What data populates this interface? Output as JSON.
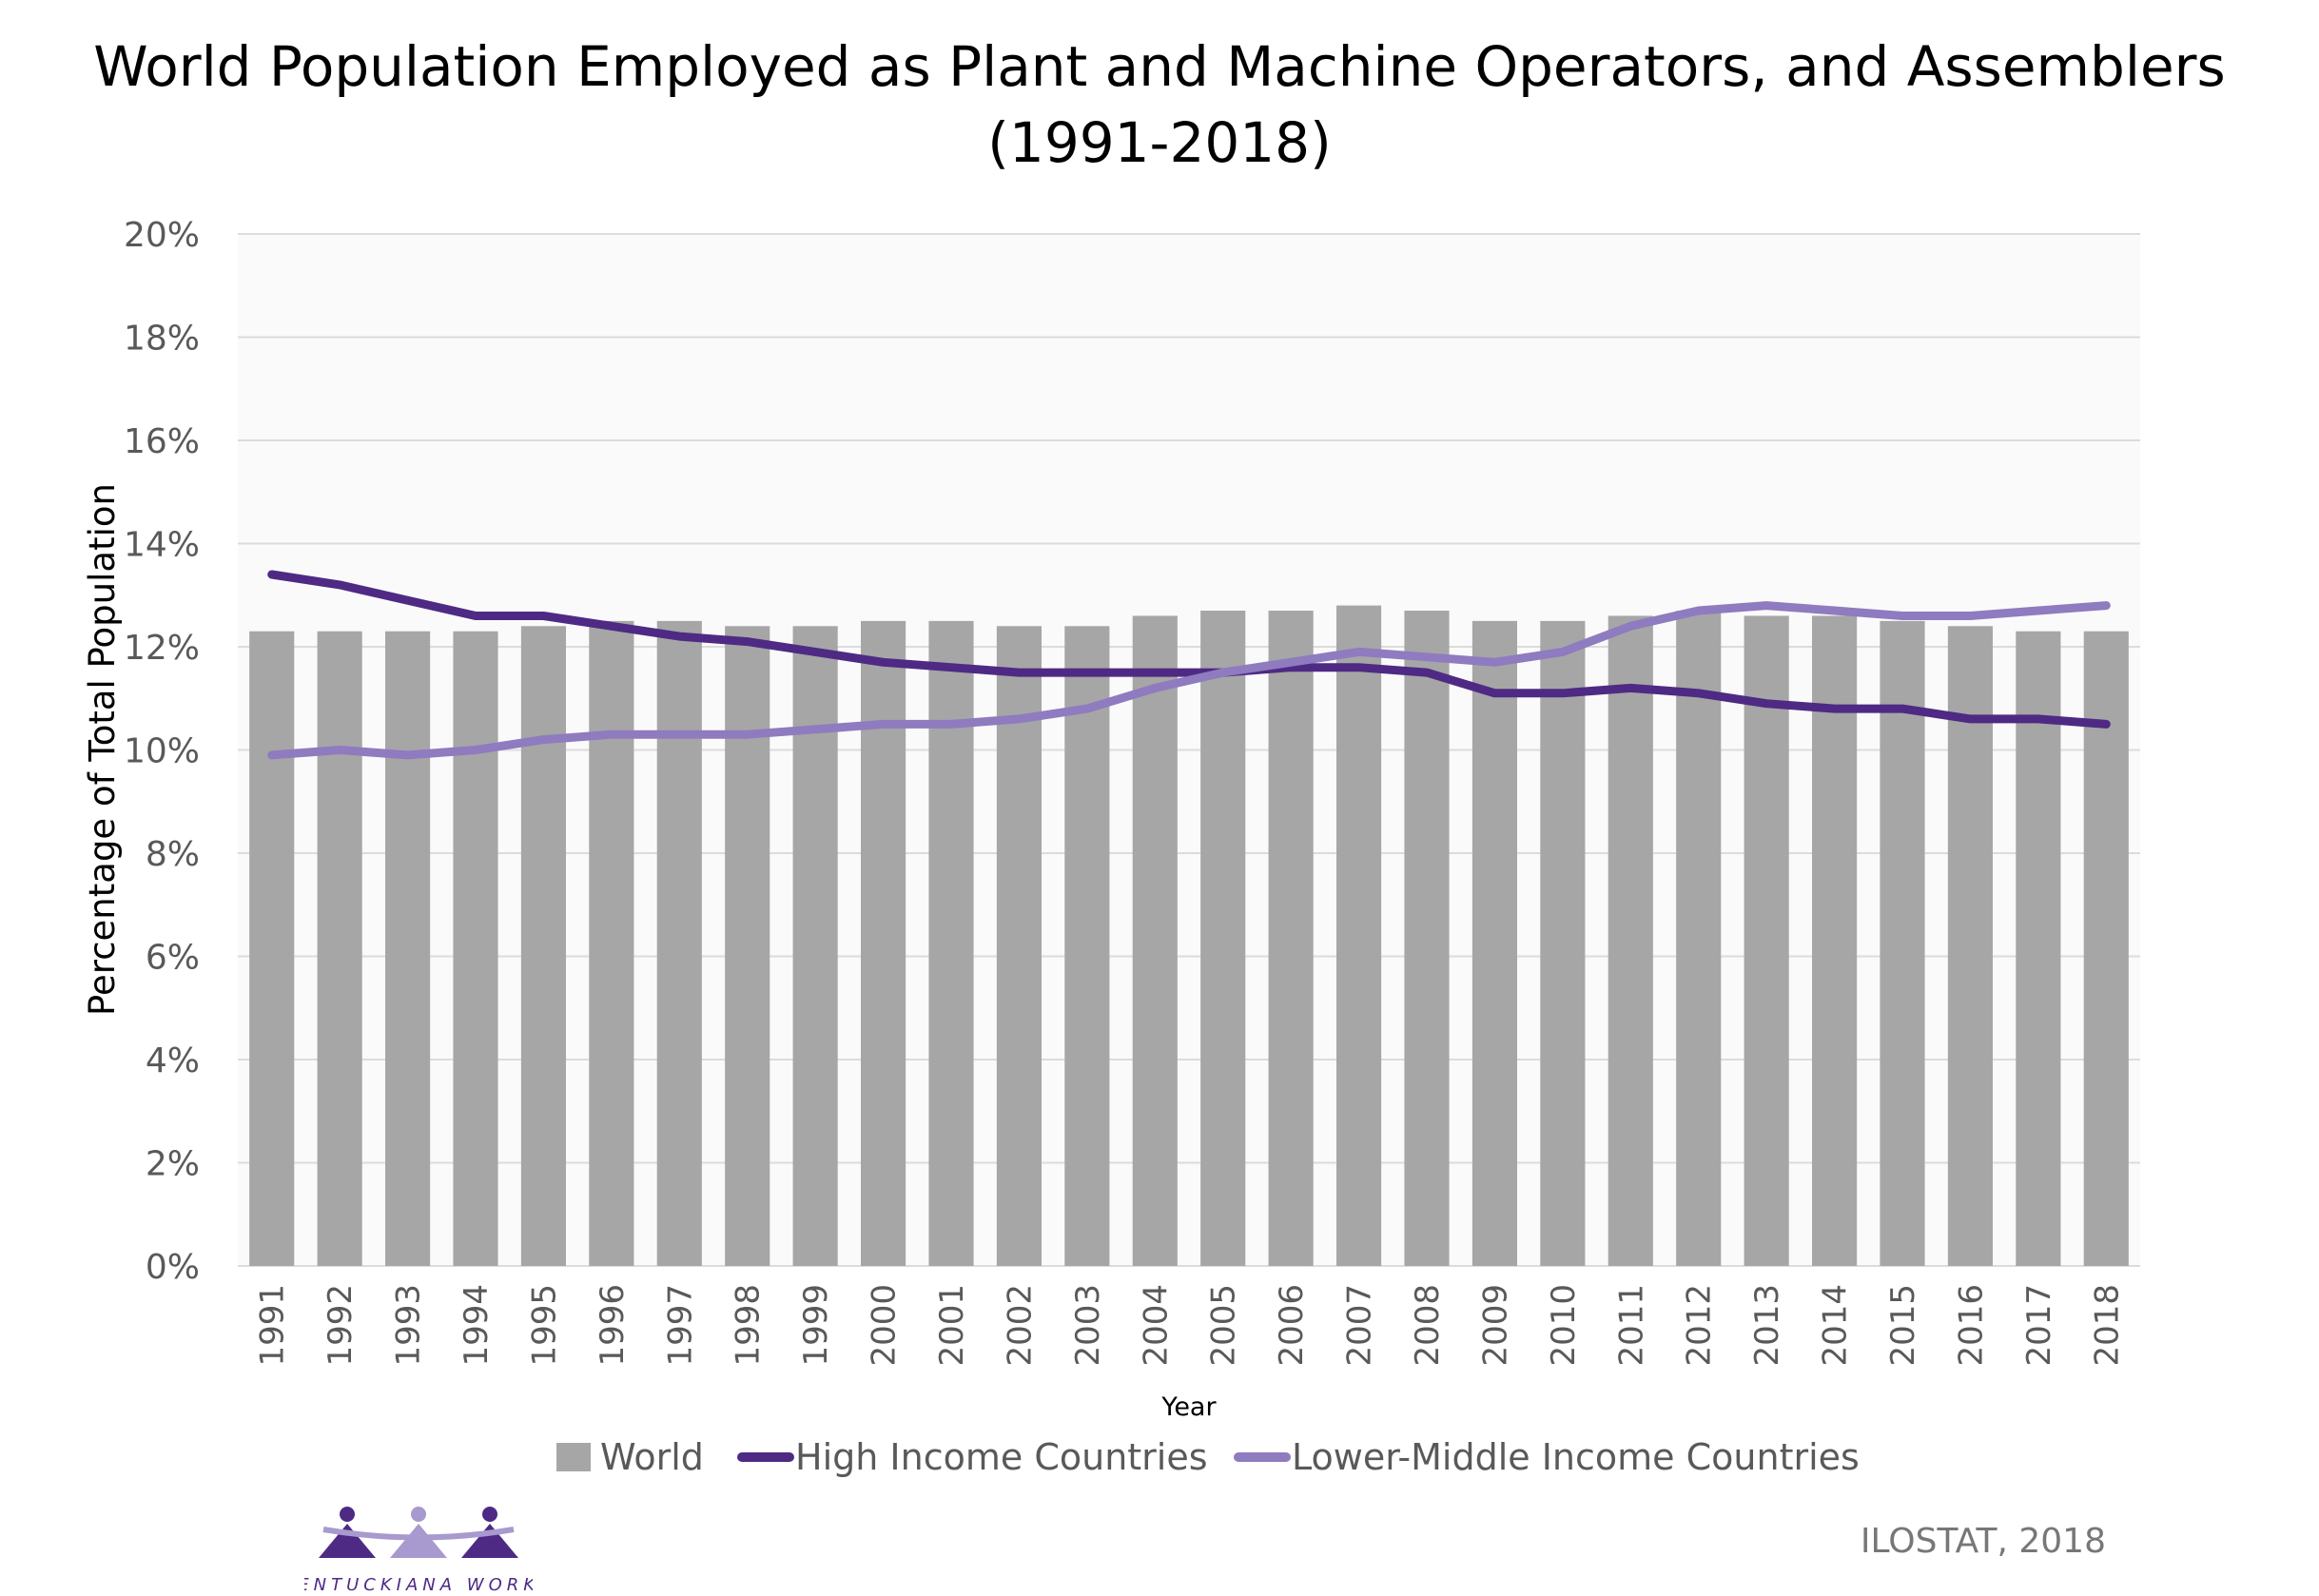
{
  "chart_data": {
    "type": "bar",
    "title_line1": "World Population Employed as Plant and Machine Operators, and Assemblers",
    "title_line2": "(1991-2018)",
    "xlabel": "Year",
    "ylabel": "Percentage of Total Population",
    "ylim": [
      0,
      20
    ],
    "yticks": [
      "0%",
      "2%",
      "4%",
      "6%",
      "8%",
      "10%",
      "12%",
      "14%",
      "16%",
      "18%",
      "20%"
    ],
    "grid": true,
    "legend_position": "bottom",
    "categories": [
      "1991",
      "1992",
      "1993",
      "1994",
      "1995",
      "1996",
      "1997",
      "1998",
      "1999",
      "2000",
      "2001",
      "2002",
      "2003",
      "2004",
      "2005",
      "2006",
      "2007",
      "2008",
      "2009",
      "2010",
      "2011",
      "2012",
      "2013",
      "2014",
      "2015",
      "2016",
      "2017",
      "2018"
    ],
    "series": [
      {
        "name": "World",
        "kind": "bar",
        "color": "#a6a6a6",
        "values": [
          12.3,
          12.3,
          12.3,
          12.3,
          12.4,
          12.5,
          12.5,
          12.4,
          12.4,
          12.5,
          12.5,
          12.4,
          12.4,
          12.6,
          12.7,
          12.7,
          12.8,
          12.7,
          12.5,
          12.5,
          12.6,
          12.7,
          12.6,
          12.6,
          12.5,
          12.4,
          12.3,
          12.3
        ]
      },
      {
        "name": "High Income Countries",
        "kind": "line",
        "color": "#4e2a84",
        "values": [
          13.4,
          13.2,
          12.9,
          12.6,
          12.6,
          12.4,
          12.2,
          12.1,
          11.9,
          11.7,
          11.6,
          11.5,
          11.5,
          11.5,
          11.5,
          11.6,
          11.6,
          11.5,
          11.1,
          11.1,
          11.2,
          11.1,
          10.9,
          10.8,
          10.8,
          10.6,
          10.6,
          10.5
        ]
      },
      {
        "name": "Lower-Middle Income Countries",
        "kind": "line",
        "color": "#8f7bbf",
        "values": [
          9.9,
          10.0,
          9.9,
          10.0,
          10.2,
          10.3,
          10.3,
          10.3,
          10.4,
          10.5,
          10.5,
          10.6,
          10.8,
          11.2,
          11.5,
          11.7,
          11.9,
          11.8,
          11.7,
          11.9,
          12.4,
          12.7,
          12.8,
          12.7,
          12.6,
          12.6,
          12.7,
          12.8
        ]
      }
    ],
    "source": "ILOSTAT, 2018"
  },
  "logo": {
    "text": "KENTUCKIANA WORKS",
    "primary_color": "#4e2a84",
    "secondary_color": "#a899cf"
  }
}
